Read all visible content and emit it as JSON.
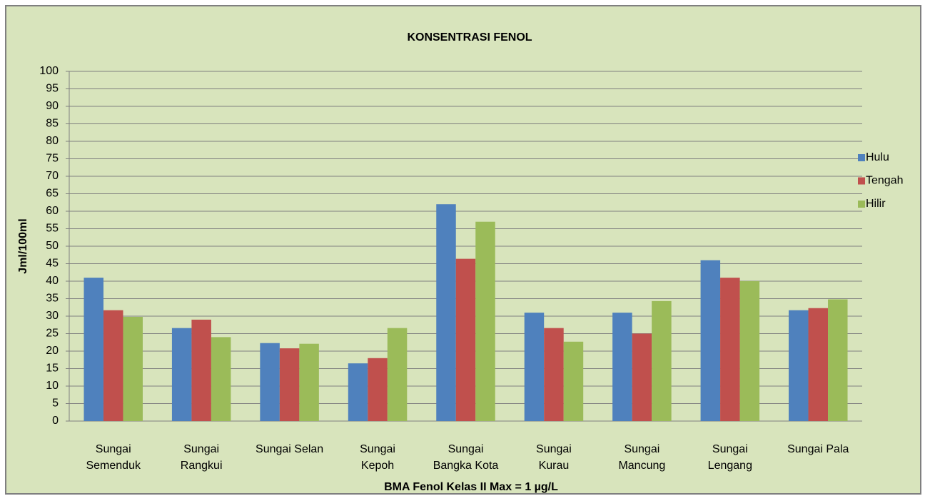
{
  "chart_data": {
    "type": "bar",
    "title": "KONSENTRASI  FENOL",
    "ylabel": "Jml/100ml",
    "xlabel": "BMA  Fenol  Kelas II Max =  1 µg/L",
    "categories": [
      "Sungai\nSemenduk",
      "Sungai\nRangkui",
      "Sungai Selan",
      "Sungai\nKepoh",
      "Sungai\nBangka Kota",
      "Sungai\nKurau",
      "Sungai\nMancung",
      "Sungai\nLengang",
      "Sungai Pala"
    ],
    "series": [
      {
        "name": "Hulu",
        "color": "#4f81bd",
        "values": [
          41,
          26.6,
          22.3,
          16.5,
          62,
          31,
          31,
          46,
          31.7
        ]
      },
      {
        "name": "Tengah",
        "color": "#c0504d",
        "values": [
          31.7,
          29,
          20.8,
          18,
          46.4,
          26.6,
          25,
          41,
          32.3
        ]
      },
      {
        "name": "Hilir",
        "color": "#9bbb59",
        "values": [
          29.8,
          24,
          22.1,
          26.6,
          57,
          22.7,
          34.3,
          40,
          34.8
        ]
      }
    ],
    "ylim": [
      0,
      100
    ],
    "yticks": [
      0,
      5,
      10,
      15,
      20,
      25,
      30,
      35,
      40,
      45,
      50,
      55,
      60,
      65,
      70,
      75,
      80,
      85,
      90,
      95,
      100
    ],
    "grid": true,
    "legend": "right"
  }
}
